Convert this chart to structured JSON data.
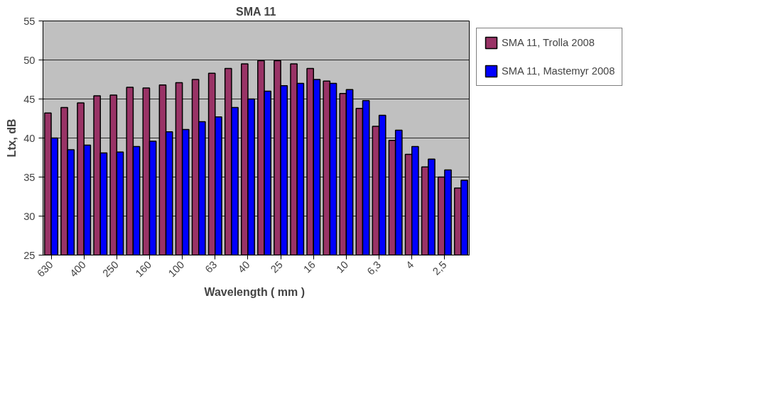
{
  "chart_data": {
    "type": "bar",
    "title": "SMA 11",
    "xlabel": "Wavelength  ( mm )",
    "ylabel": "Ltx, dB",
    "categories": [
      "630",
      null,
      "400",
      null,
      "250",
      null,
      "160",
      null,
      "100",
      null,
      "63",
      null,
      "40",
      null,
      "25",
      null,
      "16",
      null,
      "10",
      null,
      "6,3",
      null,
      "4",
      null,
      "2,5",
      null
    ],
    "series": [
      {
        "name": "SMA 11, Trolla 2008",
        "color": "#993366",
        "values": [
          43.2,
          43.9,
          44.5,
          45.4,
          45.5,
          46.5,
          46.4,
          46.8,
          47.1,
          47.5,
          48.3,
          48.9,
          49.5,
          49.9,
          49.9,
          49.5,
          48.9,
          47.3,
          45.7,
          43.8,
          41.5,
          39.7,
          37.9,
          36.3,
          35.0,
          33.6
        ]
      },
      {
        "name": "SMA 11, Mastemyr 2008",
        "color": "#0000ff",
        "values": [
          40.0,
          38.5,
          39.1,
          38.1,
          38.2,
          38.9,
          39.6,
          40.8,
          41.1,
          42.1,
          42.7,
          43.9,
          45.0,
          46.0,
          46.7,
          47.0,
          47.5,
          47.0,
          46.2,
          44.8,
          42.9,
          41.0,
          38.9,
          37.3,
          35.9,
          34.6
        ]
      }
    ],
    "ylim": [
      25,
      55
    ],
    "yticks": [
      25,
      30,
      35,
      40,
      45,
      50,
      55
    ],
    "grid": "y",
    "legend": "right"
  }
}
